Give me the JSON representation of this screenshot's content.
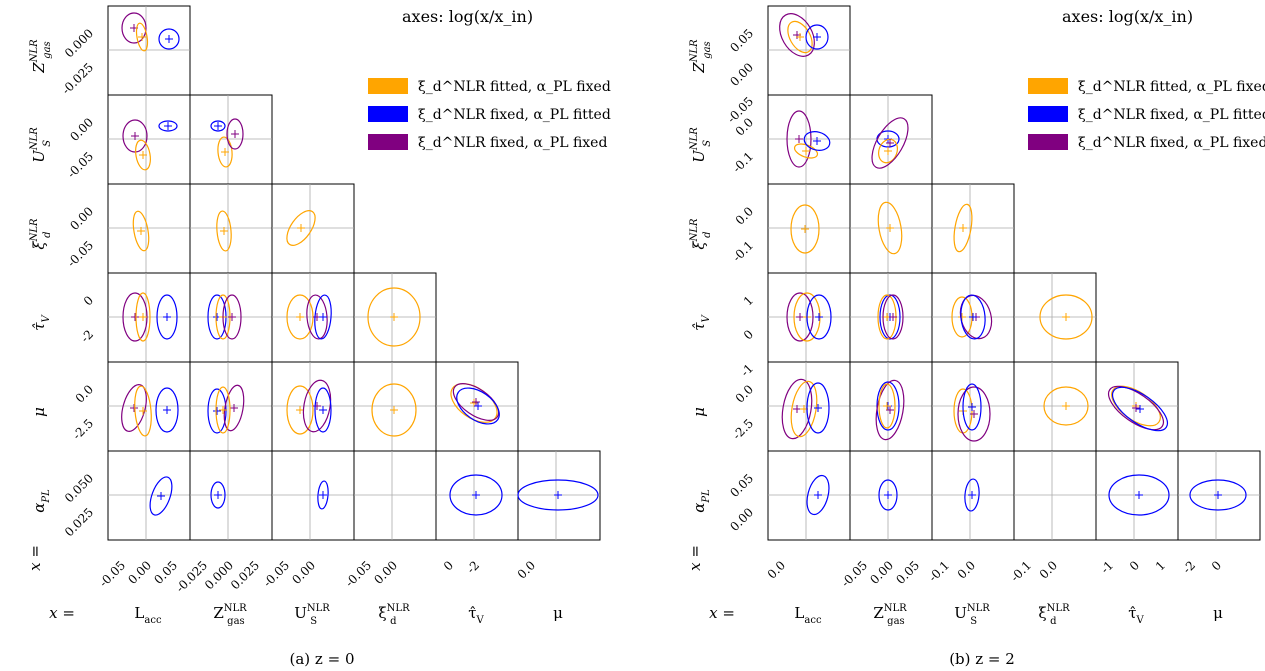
{
  "chart_data": [
    {
      "type": "scatter",
      "title": "axes: log(x/x_in)",
      "caption": "(a) z = 0",
      "row_prefix": "x =",
      "col_prefix": "x =",
      "params": [
        "L_acc",
        "Z_gas^NLR",
        "U_S^NLR",
        "ξ_d^NLR",
        "τ̂_V",
        "μ"
      ],
      "row_params": [
        "Z_gas^NLR",
        "U_S^NLR",
        "ξ_d^NLR",
        "τ̂_V",
        "μ",
        "α_PL"
      ],
      "legend": [
        "ξ_d^NLR fitted, α_PL fixed",
        "ξ_d^NLR fixed, α_PL fitted",
        "ξ_d^NLR fixed, α_PL fixed"
      ],
      "colors": {
        "orange": "#FFA500",
        "blue": "#0000FF",
        "purple": "#800080"
      },
      "col_ticks": [
        [
          "-0.05",
          "0.00",
          "0.05"
        ],
        [
          "-0.025",
          "0.000",
          "0.025"
        ],
        [
          "-0.05",
          "0.00"
        ],
        [
          "-0.05",
          "0.00"
        ],
        [
          "0",
          "-2"
        ],
        [
          "0.0"
        ]
      ],
      "row_ticks": [
        [
          "0.000",
          "-0.025"
        ],
        [
          "0.00",
          "-0.05"
        ],
        [
          "0.00",
          "-0.05"
        ],
        [
          "0",
          "-2"
        ],
        [
          "0.0",
          "-2.5"
        ],
        [
          "0.050",
          "0.025"
        ]
      ],
      "markers": [
        {
          "row": 0,
          "col": 0,
          "series": "purple",
          "x": -0.03,
          "y": -0.001
        },
        {
          "row": 0,
          "col": 0,
          "series": "orange",
          "x": -0.022,
          "y": -0.006
        },
        {
          "row": 0,
          "col": 0,
          "series": "blue",
          "x": 0.047,
          "y": -0.013
        },
        {
          "row": 1,
          "col": 0,
          "series": "purple",
          "x": -0.03,
          "y": -0.022
        },
        {
          "row": 1,
          "col": 0,
          "series": "orange",
          "x": -0.022,
          "y": -0.05
        },
        {
          "row": 1,
          "col": 0,
          "series": "blue",
          "x": 0.047,
          "y": -0.012
        },
        {
          "row": 1,
          "col": 1,
          "series": "blue",
          "x": -0.012,
          "y": -0.012
        },
        {
          "row": 1,
          "col": 1,
          "series": "orange",
          "x": -0.008,
          "y": -0.05
        },
        {
          "row": 1,
          "col": 1,
          "series": "purple",
          "x": -0.002,
          "y": -0.022
        }
      ]
    },
    {
      "type": "scatter",
      "title": "axes: log(x/x_in)",
      "caption": "(b) z = 2",
      "row_prefix": "x =",
      "col_prefix": "x =",
      "params": [
        "L_acc",
        "Z_gas^NLR",
        "U_S^NLR",
        "ξ_d^NLR",
        "τ̂_V",
        "μ"
      ],
      "row_params": [
        "Z_gas^NLR",
        "U_S^NLR",
        "ξ_d^NLR",
        "τ̂_V",
        "μ",
        "α_PL"
      ],
      "legend": [
        "ξ_d^NLR fitted, α_PL fixed",
        "ξ_d^NLR fixed, α_PL fitted",
        "ξ_d^NLR fixed, α_PL fixed"
      ],
      "colors": {
        "orange": "#FFA500",
        "blue": "#0000FF",
        "purple": "#800080"
      },
      "col_ticks": [
        [
          "0.0"
        ],
        [
          "-0.05",
          "0.00",
          "0.05"
        ],
        [
          "-0.1",
          "0.0"
        ],
        [
          "-0.1",
          "0.0"
        ],
        [
          "-1",
          "0",
          "1"
        ],
        [
          "-2",
          "0"
        ]
      ],
      "row_ticks": [
        [
          "0.05",
          "0.00",
          "-0.05"
        ],
        [
          "0.0",
          "-0.1"
        ],
        [
          "0.0",
          "-0.1"
        ],
        [
          "1",
          "0",
          "-1"
        ],
        [
          "0.0",
          "-2.5"
        ],
        [
          "0.05",
          "0.00"
        ]
      ],
      "markers": [
        {
          "row": 0,
          "col": 0,
          "series": "purple",
          "x": -0.02,
          "y": -0.01
        },
        {
          "row": 0,
          "col": 0,
          "series": "blue",
          "x": 0.04,
          "y": -0.015
        }
      ]
    }
  ],
  "panels": [
    {
      "x_labels": [
        "L_acc",
        "Z_gas^NLR",
        "U_S^NLR",
        "ξ_d^NLR",
        "τ̂_V",
        "μ"
      ]
    },
    {
      "x_labels": [
        "L_acc",
        "Z_gas^NLR",
        "U_S^NLR",
        "ξ_d^NLR",
        "τ̂_V",
        "μ"
      ]
    }
  ]
}
